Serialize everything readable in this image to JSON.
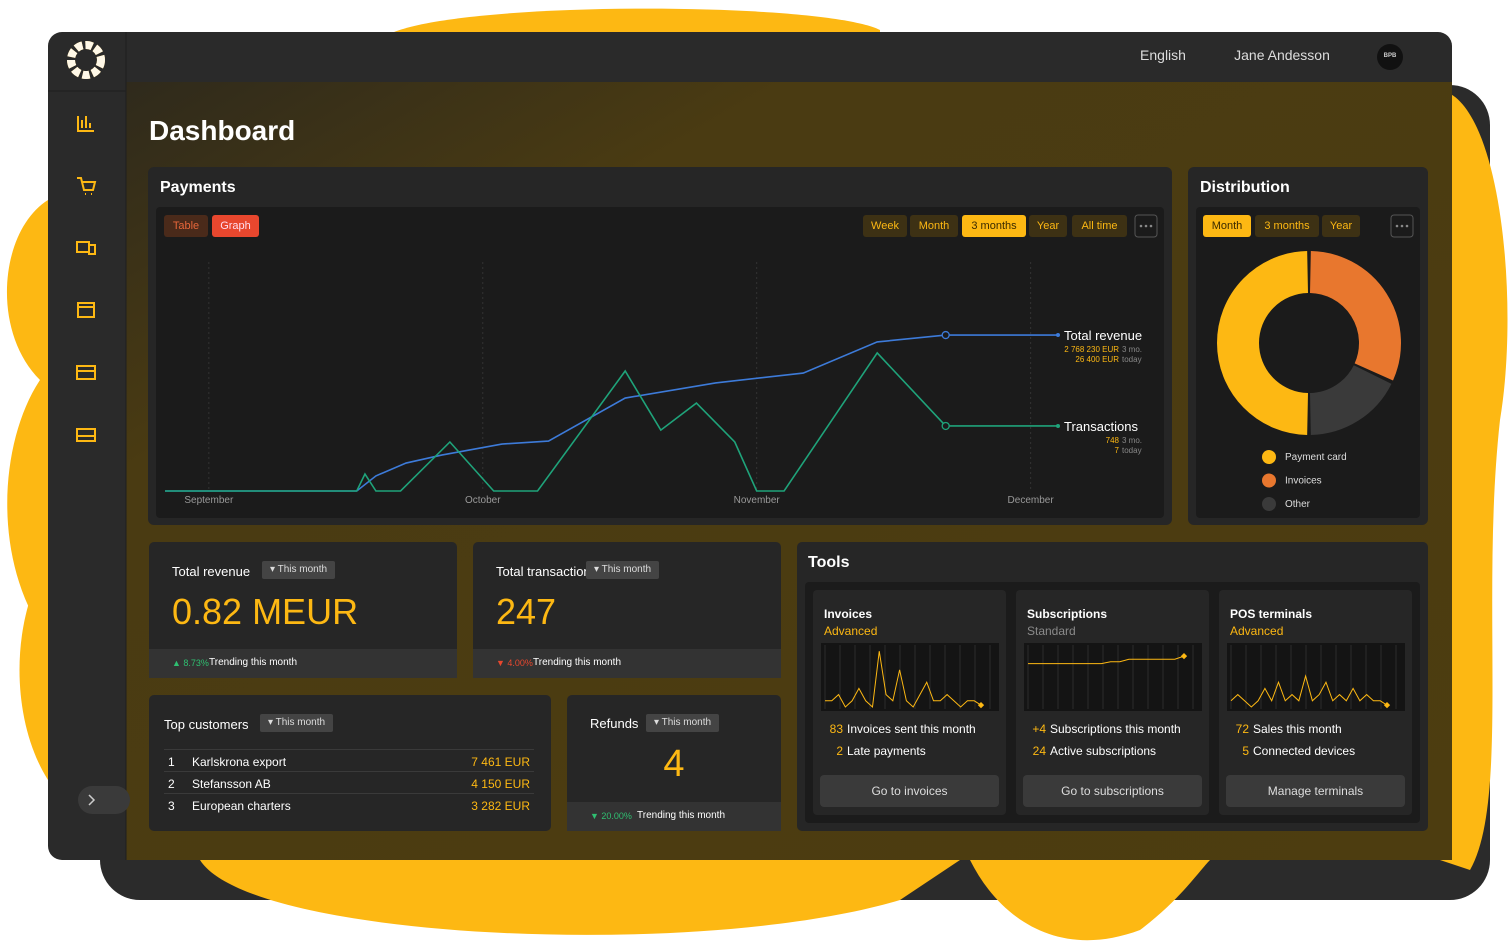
{
  "header": {
    "language": "English",
    "user": "Jane Andesson",
    "avatar": "BPB"
  },
  "page_title": "Dashboard",
  "payments": {
    "title": "Payments",
    "view_options": [
      "Table",
      "Graph"
    ],
    "active_view": 1,
    "ranges": [
      "Week",
      "Month",
      "3 months",
      "Year",
      "All time"
    ],
    "active_range": 2,
    "chart_data": {
      "type": "line",
      "xlim": [
        -0.16,
        3.1
      ],
      "ylim": [
        0,
        100
      ],
      "xticks": [
        {
          "value": 0,
          "label": "September"
        },
        {
          "value": 1,
          "label": "October"
        },
        {
          "value": 2,
          "label": "November"
        },
        {
          "value": 3,
          "label": "December"
        }
      ],
      "series": [
        {
          "name": "Total revenue",
          "color": "#3d7bd9",
          "x": [
            -0.16,
            0.54,
            0.61,
            0.72,
            0.85,
            1.07,
            1.24,
            1.52,
            1.85,
            2.17,
            2.44,
            2.69,
            3.1
          ],
          "values": [
            0,
            0,
            6.6,
            12.2,
            15.7,
            20.5,
            21.8,
            40.6,
            47.2,
            51.5,
            65.1,
            68.1,
            68.1
          ],
          "summary": [
            {
              "value": "2 768 230 EUR",
              "period": "3 mo."
            },
            {
              "value": "26 400 EUR",
              "period": "today"
            }
          ]
        },
        {
          "name": "Transactions",
          "color": "#1fa37a",
          "x": [
            -0.16,
            0.54,
            0.57,
            0.61,
            0.7,
            0.88,
            1.04,
            1.2,
            1.52,
            1.65,
            1.78,
            1.92,
            2.0,
            2.1,
            2.44,
            2.69,
            3.1
          ],
          "values": [
            0,
            0,
            7.4,
            0,
            0,
            21.4,
            0,
            0,
            52.4,
            26.6,
            38.4,
            21.4,
            0,
            0,
            60.3,
            28.4,
            28.4
          ],
          "summary": [
            {
              "value": "748",
              "period": "3 mo."
            },
            {
              "value": "7",
              "period": "today"
            }
          ]
        }
      ]
    }
  },
  "distribution": {
    "title": "Distribution",
    "ranges": [
      "Month",
      "3 months",
      "Year"
    ],
    "active_range": 0,
    "chart_data": {
      "type": "donut",
      "categories": [
        "Payment card",
        "Invoices",
        "Other"
      ],
      "values": [
        50,
        32,
        18
      ],
      "colors": [
        "#fdb813",
        "#e8772e",
        "#3a3a3a"
      ]
    }
  },
  "kpis": [
    {
      "label": "Total revenue",
      "filter": "▾ This month",
      "value": "0.82 MEUR",
      "trend": "▲ 8.73%",
      "trend_color": "#2fbf71",
      "trend_text": "Trending this month"
    },
    {
      "label": "Total transactions",
      "filter": "▾ This month",
      "value": "247",
      "trend": "▼ 4.00%",
      "trend_color": "#e8472e",
      "trend_text": "Trending this month"
    }
  ],
  "top_customers": {
    "title": "Top customers",
    "filter": "▾ This month",
    "rows": [
      [
        "1",
        "Karlskrona export",
        "7 461 EUR"
      ],
      [
        "2",
        "Stefansson AB",
        "4 150 EUR"
      ],
      [
        "3",
        "European charters",
        "3 282 EUR"
      ]
    ]
  },
  "refunds": {
    "label": "Refunds",
    "filter": "▾ This month",
    "value": "4",
    "trend": "▼ 20.00%",
    "trend_color": "#2fbf71",
    "trend_text": "Trending this month"
  },
  "tools": {
    "title": "Tools",
    "cards": [
      {
        "name": "Invoices",
        "tier": "Advanced",
        "tier_color": "#fdb813",
        "chart": {
          "type": "line",
          "color": "#fdb813",
          "ylim": [
            0,
            10
          ],
          "values": [
            1,
            1,
            2,
            0,
            1,
            3,
            1,
            0,
            9,
            2,
            1,
            6,
            1,
            0,
            2,
            4,
            1,
            1,
            2,
            1,
            0,
            1,
            1,
            0.3
          ]
        },
        "stats": [
          [
            "83",
            "Invoices sent this month"
          ],
          [
            "2",
            "Late payments"
          ]
        ],
        "button": "Go to invoices"
      },
      {
        "name": "Subscriptions",
        "tier": "Standard",
        "tier_color": "#8a8a8a",
        "chart": {
          "type": "line",
          "color": "#fdb813",
          "ylim": [
            0,
            10
          ],
          "values": [
            7,
            7,
            7,
            7,
            7,
            7,
            7,
            7,
            7,
            7.3,
            7.3,
            7.7,
            7.7,
            7.7,
            7.7,
            7.7,
            7.7,
            8.2
          ]
        },
        "stats": [
          [
            "+4",
            "Subscriptions this month"
          ],
          [
            "24",
            "Active subscriptions"
          ]
        ],
        "button": "Go to subscriptions"
      },
      {
        "name": "POS terminals",
        "tier": "Advanced",
        "tier_color": "#fdb813",
        "chart": {
          "type": "line",
          "color": "#fdb813",
          "ylim": [
            0,
            10
          ],
          "values": [
            1,
            2,
            1,
            0,
            1,
            3,
            1,
            4,
            1,
            2,
            1,
            5,
            1,
            2,
            4,
            1,
            2,
            1,
            3,
            1,
            2,
            1,
            1,
            0.3
          ]
        },
        "stats": [
          [
            "72",
            "Sales this month"
          ],
          [
            "5",
            "Connected devices"
          ]
        ],
        "button": "Manage terminals"
      }
    ]
  }
}
